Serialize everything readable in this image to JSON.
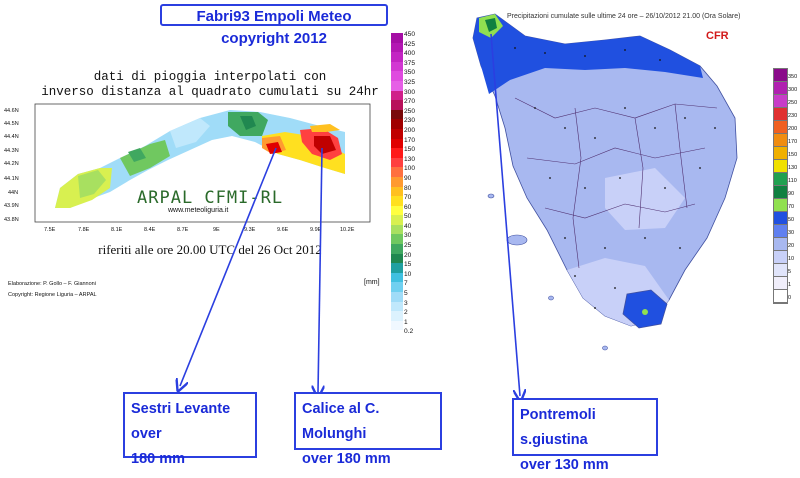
{
  "banner": "Fabri93 Empoli Meteo copyright 2012",
  "liguria": {
    "title": "dati di pioggia interpolati con\ninverso distanza al quadrato cumulati su 24hr",
    "subtitle": "riferiti alle ore 20.00 UTC del 26 Oct 2012",
    "logo": "ARPAL CFMI-RL",
    "website": "www.meteoliguria.it",
    "credit_1": "Elaborazione: P. Gollo – F. Giannoni",
    "credit_2": "Copyright: Regione Liguria – ARPAL",
    "unit": "[mm]",
    "lat_ticks": [
      "44.6N",
      "44.5N",
      "44.4N",
      "44.3N",
      "44.2N",
      "44.1N",
      "44N",
      "43.9N",
      "43.8N"
    ],
    "lon_ticks": [
      "7.5E",
      "7.8E",
      "8.1E",
      "8.4E",
      "8.7E",
      "9E",
      "9.3E",
      "9.6E",
      "9.9E",
      "10.2E"
    ],
    "scale_values": [
      "450",
      "425",
      "400",
      "375",
      "350",
      "325",
      "300",
      "270",
      "250",
      "230",
      "200",
      "170",
      "150",
      "130",
      "100",
      "90",
      "80",
      "70",
      "60",
      "50",
      "40",
      "30",
      "25",
      "20",
      "15",
      "10",
      "7",
      "5",
      "3",
      "2",
      "1",
      "0.2"
    ],
    "scale_colors": [
      "#a50fa5",
      "#b318b3",
      "#c325c3",
      "#d238d2",
      "#df4bdf",
      "#e660e6",
      "#d0208a",
      "#b8105a",
      "#7a0a0a",
      "#a00000",
      "#c00000",
      "#e00000",
      "#ff1a1a",
      "#ff4040",
      "#ff7040",
      "#ff9a30",
      "#ffc020",
      "#ffe020",
      "#ffff40",
      "#d8f050",
      "#a8e060",
      "#70c860",
      "#40a860",
      "#208850",
      "#20a0a0",
      "#40c0e0",
      "#70d0f0",
      "#a0dcf8",
      "#c0e8fc",
      "#dcf2fe",
      "#f0f8ff",
      "#ffffff"
    ]
  },
  "toscana": {
    "title": "Precipitazioni cumulate sulle ultime 24 ore – 26/10/2012 21.00 (Ora Solare)",
    "agency": "CFR",
    "scale_values": [
      "350",
      "300",
      "250",
      "230",
      "200",
      "170",
      "150",
      "130",
      "110",
      "90",
      "70",
      "50",
      "30",
      "20",
      "10",
      "5",
      "1",
      "0"
    ],
    "scale_colors": [
      "#8a0a8a",
      "#b020b0",
      "#c83cc8",
      "#e03030",
      "#f06020",
      "#f08c10",
      "#f0b000",
      "#f0e000",
      "#20a050",
      "#108040",
      "#90e050",
      "#2050e0",
      "#6080f0",
      "#a8b8f0",
      "#c8d0f8",
      "#e0e4fa",
      "#f0eefa",
      "#ffffff"
    ]
  },
  "callouts": {
    "sestri": [
      "Sestri Levante over",
      "180 mm"
    ],
    "calice": [
      "Calice al C. Molunghi",
      "over 180 mm"
    ],
    "pontremoli": [
      "Pontremoli s.giustina",
      "over 130 mm"
    ]
  }
}
